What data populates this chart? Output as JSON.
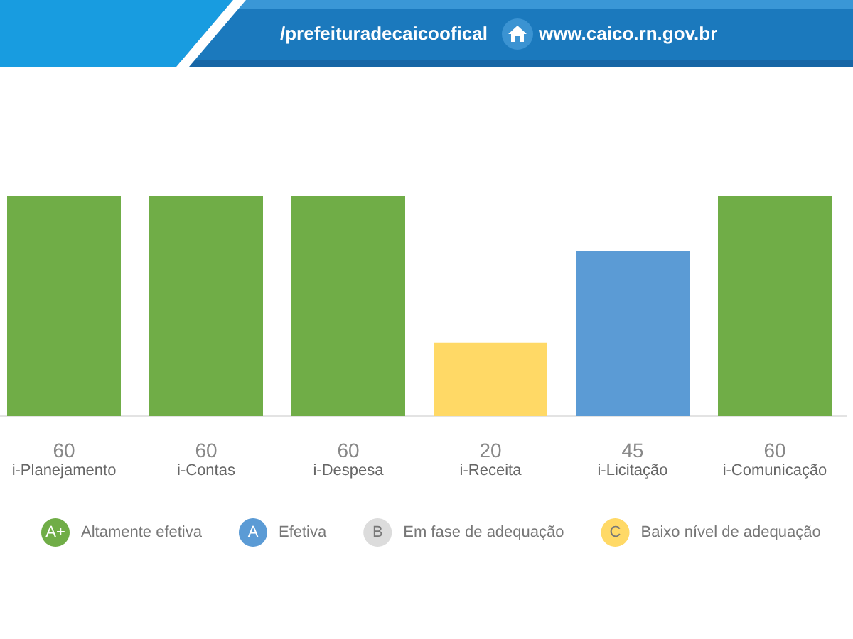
{
  "chart_data": {
    "type": "bar",
    "categories": [
      "i-Planejamento",
      "i-Contas",
      "i-Despesa",
      "i-Receita",
      "i-Licitação",
      "i-Comunicação"
    ],
    "stacked": true,
    "series": [
      {
        "name": "Altamente efetiva",
        "color": "#70ad47",
        "values": [
          60,
          60,
          60,
          null,
          null,
          60
        ]
      },
      {
        "name": "Efetiva",
        "color": "#5b9bd5",
        "values": [
          null,
          null,
          null,
          null,
          45,
          null
        ]
      },
      {
        "name": "Em fase de adequação",
        "color": "#dcdcdc",
        "values": [
          null,
          null,
          null,
          null,
          null,
          null
        ]
      },
      {
        "name": "Baixo nível de adequação",
        "color": "#ffd966",
        "values": [
          null,
          null,
          null,
          20,
          null,
          null
        ]
      }
    ],
    "data_labels": true,
    "legend": "bottom",
    "tick_labels": "x",
    "annotations": [
      "A+",
      "A",
      "B",
      "C",
      "/prefeituradecaicoofical",
      "www.caico.rn.gov.br"
    ]
  }
}
